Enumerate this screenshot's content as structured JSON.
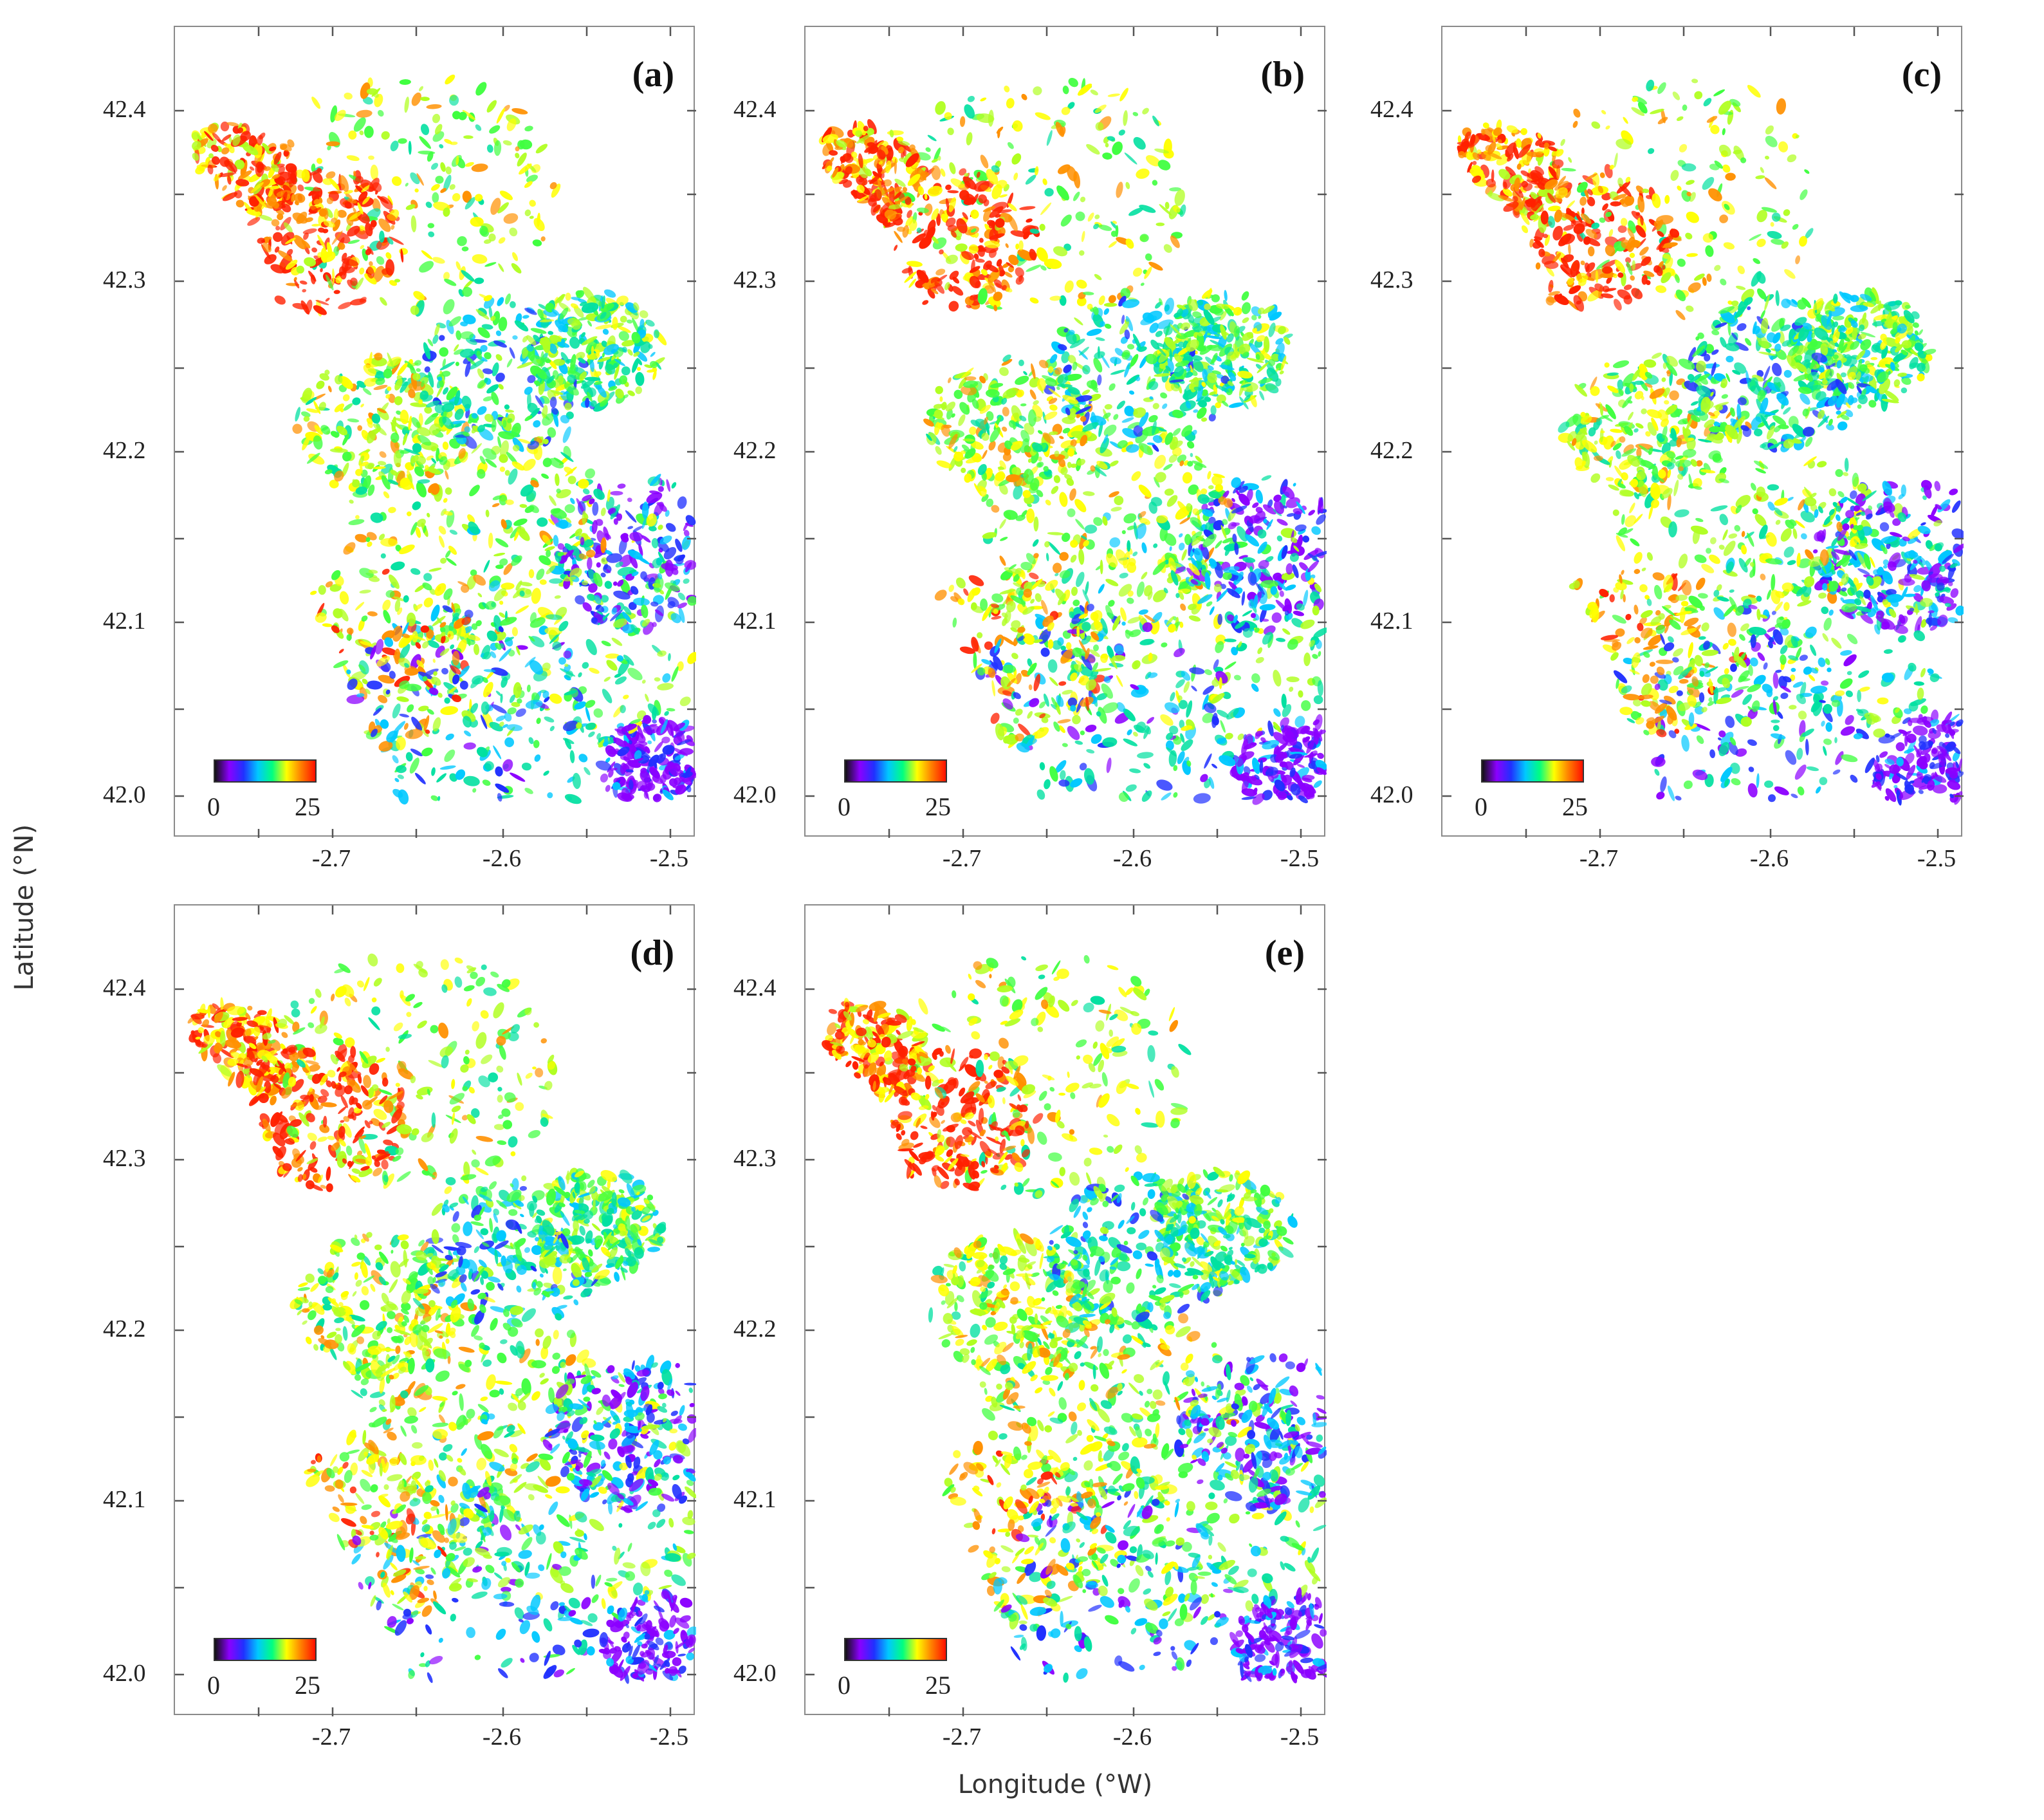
{
  "figure": {
    "ylabel": "Latitude (°N)",
    "xlabel": "Longitude (°W)"
  },
  "axes": {
    "x_ticks": [
      "-2.7",
      "-2.6",
      "-2.5"
    ],
    "y_ticks": [
      "42.4",
      "42.3",
      "42.2",
      "42.1",
      "42.0"
    ],
    "xlim": [
      -2.74,
      -2.44
    ],
    "ylim": [
      41.985,
      42.45
    ]
  },
  "colorbar": {
    "min_label": "0",
    "max_label": "25",
    "colors": [
      "#111111",
      "#8b00ff",
      "#2030ff",
      "#00c8ff",
      "#00ff80",
      "#ffff00",
      "#ff8000",
      "#ff1000"
    ]
  },
  "panels": [
    {
      "id": "a",
      "label": "(a)"
    },
    {
      "id": "b",
      "label": "(b)"
    },
    {
      "id": "c",
      "label": "(c)"
    },
    {
      "id": "d",
      "label": "(d)"
    },
    {
      "id": "e",
      "label": "(e)"
    }
  ],
  "colors": {
    "frame": "#8a8a8a",
    "map_palette": [
      "#8b00ff",
      "#2030ff",
      "#00c8ff",
      "#00e0a0",
      "#40ff40",
      "#b0ff20",
      "#ffff00",
      "#ff9000",
      "#ff2000"
    ]
  }
}
